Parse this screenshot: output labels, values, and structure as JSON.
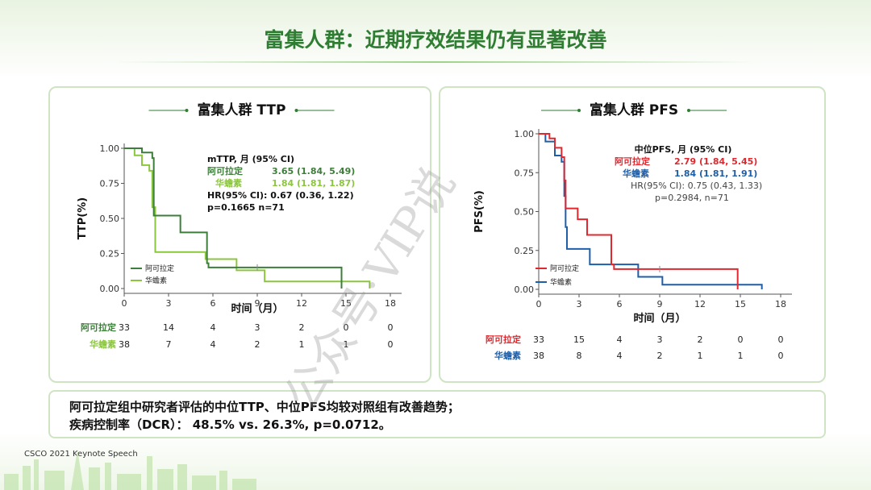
{
  "page": {
    "title": "富集人群：近期疗效结果仍有显著改善",
    "footer": "CSCO 2021 Keynote Speech",
    "watermark": "公众号·VIP说",
    "note_line1": "阿可拉定组中研究者评估的中位TTP、中位PFS均较对照组有改善趋势；",
    "note_line2": "疾病控制率（DCR）：  48.5% vs. 26.3%, p=0.0712。"
  },
  "colors": {
    "ttp_a": "#3d7f3a",
    "ttp_b": "#8cc63f",
    "pfs_a": "#e0282f",
    "pfs_b": "#1f5fa8",
    "brand": "#2f7d32"
  },
  "chart_data": [
    {
      "type": "line",
      "title": "富集人群 TTP",
      "xlabel": "时间（月）",
      "ylabel": "TTP(%)",
      "xlim": [
        0,
        18
      ],
      "ylim": [
        0,
        1
      ],
      "xticks": [
        "0",
        "3",
        "6",
        "9",
        "12",
        "15",
        "18"
      ],
      "yticks": [
        "0.00",
        "0.25",
        "0.50",
        "0.75",
        "1.00"
      ],
      "legend": "bottom-left",
      "series": [
        {
          "name": "阿可拉定",
          "step": [
            [
              0,
              1
            ],
            [
              1,
              1
            ],
            [
              1.2,
              0.97
            ],
            [
              1.6,
              0.97
            ],
            [
              1.9,
              0.93
            ],
            [
              2,
              0.52
            ],
            [
              3.8,
              0.52
            ],
            [
              3.8,
              0.4
            ],
            [
              5.6,
              0.4
            ],
            [
              5.6,
              0.18
            ],
            [
              5.7,
              0.15
            ],
            [
              14.7,
              0.15
            ],
            [
              14.7,
              0.0
            ]
          ],
          "censor": [
            [
              9,
              0.15
            ]
          ]
        },
        {
          "name": "华蟾素",
          "step": [
            [
              0,
              1
            ],
            [
              0.7,
              1
            ],
            [
              0.7,
              0.95
            ],
            [
              1.2,
              0.95
            ],
            [
              1.2,
              0.88
            ],
            [
              1.7,
              0.84
            ],
            [
              1.9,
              0.58
            ],
            [
              2.1,
              0.26
            ],
            [
              5.5,
              0.26
            ],
            [
              5.5,
              0.21
            ],
            [
              7.6,
              0.21
            ],
            [
              7.6,
              0.13
            ],
            [
              9.5,
              0.13
            ],
            [
              9.5,
              0.05
            ],
            [
              16.6,
              0.05
            ],
            [
              16.6,
              0.0
            ]
          ],
          "censor": []
        }
      ],
      "annotation": {
        "head": "mTTP, 月 (95% CI)",
        "row_a_label": "阿可拉定",
        "row_a_value": "3.65 (1.84,  5.49)",
        "row_b_label": "华蟾素",
        "row_b_value": "1.84 (1.81,  1.87)",
        "hr": "HR(95% CI): 0.67 (0.36, 1.22)",
        "p": "p=0.1665  n=71"
      },
      "risk_table": {
        "rows": [
          {
            "label": "阿可拉定",
            "values": [
              "33",
              "14",
              "4",
              "3",
              "2",
              "0",
              "0"
            ]
          },
          {
            "label": "华蟾素",
            "values": [
              "38",
              "7",
              "4",
              "2",
              "1",
              "1",
              "0"
            ]
          }
        ]
      }
    },
    {
      "type": "line",
      "title": "富集人群 PFS",
      "xlabel": "时间（月）",
      "ylabel": "PFS(%)",
      "xlim": [
        0,
        18
      ],
      "ylim": [
        0,
        1
      ],
      "xticks": [
        "0",
        "3",
        "6",
        "9",
        "12",
        "15",
        "18"
      ],
      "yticks": [
        "0.00",
        "0.25",
        "0.50",
        "0.75",
        "1.00"
      ],
      "legend": "bottom-left",
      "series": [
        {
          "name": "阿可拉定",
          "step": [
            [
              0,
              1
            ],
            [
              0.8,
              1
            ],
            [
              0.8,
              0.97
            ],
            [
              1.2,
              0.97
            ],
            [
              1.2,
              0.91
            ],
            [
              1.7,
              0.85
            ],
            [
              1.9,
              0.7
            ],
            [
              2,
              0.52
            ],
            [
              2.9,
              0.52
            ],
            [
              2.9,
              0.45
            ],
            [
              3.6,
              0.45
            ],
            [
              3.6,
              0.35
            ],
            [
              5.4,
              0.35
            ],
            [
              5.4,
              0.16
            ],
            [
              5.6,
              0.13
            ],
            [
              14.8,
              0.13
            ],
            [
              14.8,
              0.0
            ]
          ],
          "censor": [
            [
              9,
              0.13
            ]
          ]
        },
        {
          "name": "华蟾素",
          "step": [
            [
              0,
              1
            ],
            [
              0.5,
              1
            ],
            [
              0.5,
              0.95
            ],
            [
              1,
              0.95
            ],
            [
              1.2,
              0.86
            ],
            [
              1.7,
              0.82
            ],
            [
              1.9,
              0.6
            ],
            [
              2,
              0.4
            ],
            [
              2.1,
              0.26
            ],
            [
              3.8,
              0.26
            ],
            [
              3.8,
              0.16
            ],
            [
              7.4,
              0.16
            ],
            [
              7.4,
              0.08
            ],
            [
              9.2,
              0.08
            ],
            [
              9.2,
              0.03
            ],
            [
              16.6,
              0.03
            ],
            [
              16.6,
              0.0
            ]
          ],
          "censor": []
        }
      ],
      "annotation": {
        "head": "中位PFS, 月 (95% CI)",
        "row_a_label": "阿可拉定",
        "row_a_value": "2.79 (1.84, 5.45)",
        "row_b_label": "华蟾素",
        "row_b_value": "1.84 (1.81, 1.91)",
        "hr": "HR(95% CI): 0.75 (0.43,  1.33)",
        "p": "p=0.2984, n=71"
      },
      "risk_table": {
        "rows": [
          {
            "label": "阿可拉定",
            "values": [
              "33",
              "15",
              "4",
              "3",
              "2",
              "0",
              "0"
            ]
          },
          {
            "label": "华蟾素",
            "values": [
              "38",
              "8",
              "4",
              "2",
              "1",
              "1",
              "0"
            ]
          }
        ]
      }
    }
  ]
}
